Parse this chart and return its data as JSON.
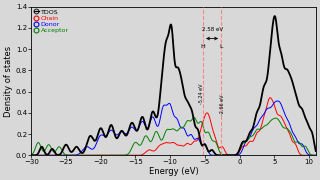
{
  "title": "",
  "xlabel": "Energy (eV)",
  "ylabel": "Density of states",
  "xlim": [
    -30,
    11
  ],
  "ylim": [
    0,
    1.4
  ],
  "yticks": [
    0.0,
    0.2,
    0.4,
    0.6,
    0.8,
    1.0,
    1.2,
    1.4
  ],
  "xticks": [
    -30,
    -25,
    -20,
    -15,
    -10,
    -5,
    0,
    5,
    10
  ],
  "homo_energy": -5.24,
  "lumo_energy": -2.66,
  "gap_label": "2.58 eV",
  "homo_label": "H",
  "lumo_label": "L",
  "homo_annotation": "-5.24 eV",
  "lumo_annotation": "-2.66 eV",
  "legend_labels": [
    "TDOS",
    "Chain",
    "Donor",
    "Acceptor"
  ],
  "legend_colors": [
    "black",
    "red",
    "blue",
    "green"
  ],
  "background_color": "#d8d8d8"
}
